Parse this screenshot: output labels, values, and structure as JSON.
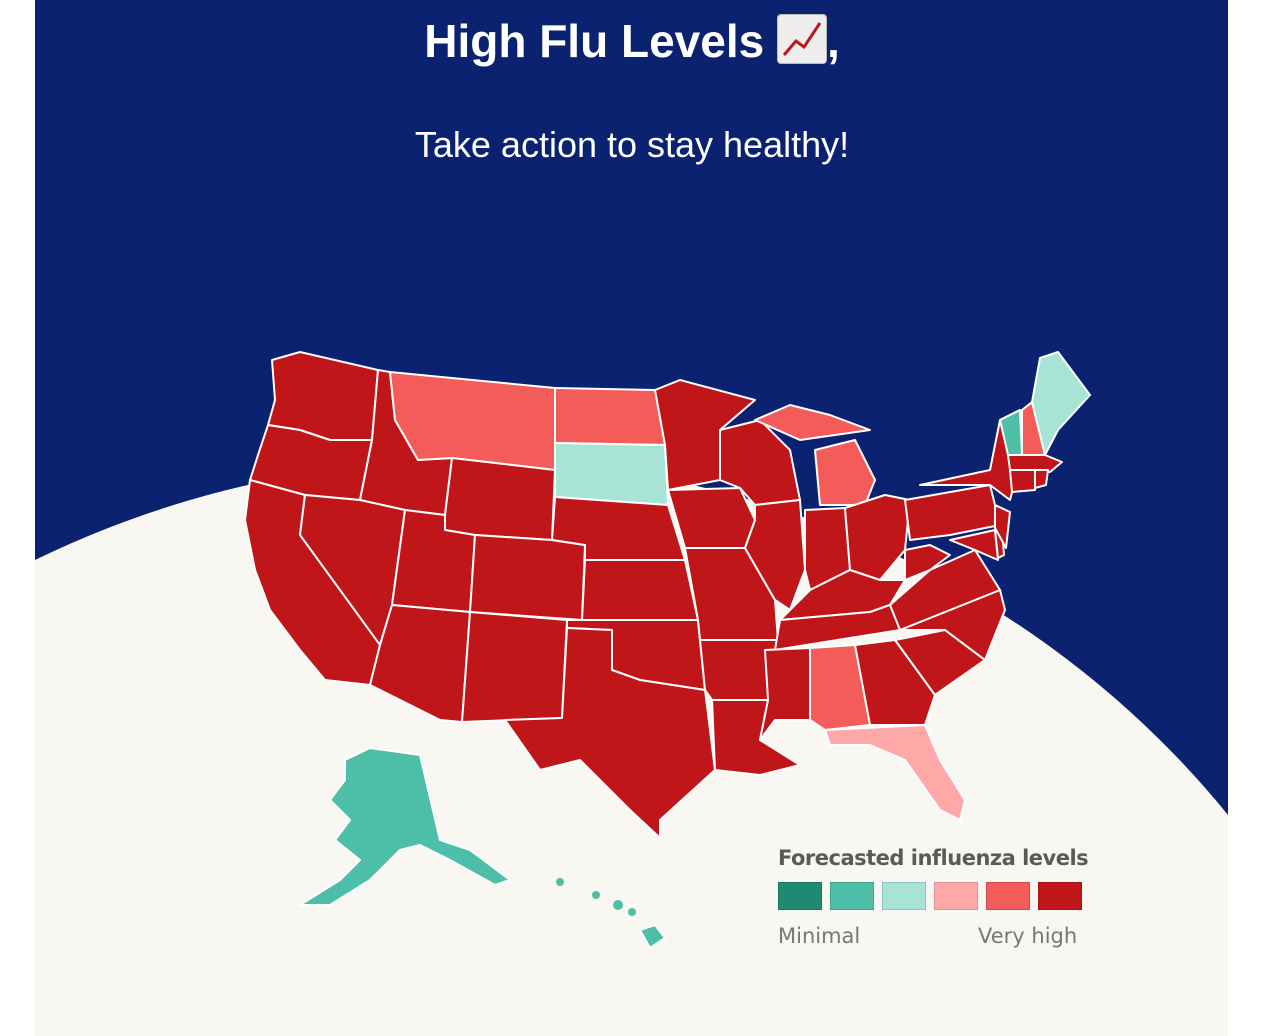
{
  "header": {
    "title": "High Flu Levels",
    "title_suffix": ",",
    "title_emoji": "chart-increasing-icon",
    "subtitle": "Take action to stay healthy!"
  },
  "colors": {
    "background": "#0b2270",
    "map_backdrop": "#f9f7f2",
    "levels": [
      "#1e8a72",
      "#4dbfa8",
      "#a8e4d6",
      "#ffa8a8",
      "#f45c5a",
      "#c0161a"
    ]
  },
  "legend": {
    "title": "Forecasted influenza levels",
    "min_label": "Minimal",
    "max_label": "Very high"
  },
  "state_levels": {
    "WA": 6,
    "OR": 6,
    "CA": 6,
    "ID": 6,
    "NV": 6,
    "MT": 5,
    "WY": 6,
    "UT": 6,
    "AZ": 6,
    "CO": 6,
    "NM": 6,
    "ND": 5,
    "SD": 3,
    "NE": 6,
    "KS": 6,
    "OK": 6,
    "TX": 6,
    "MN": 6,
    "IA": 6,
    "MO": 6,
    "AR": 6,
    "LA": 6,
    "WI": 6,
    "IL": 6,
    "MI": 5,
    "IN": 6,
    "OH": 6,
    "KY": 6,
    "TN": 6,
    "MS": 6,
    "AL": 5,
    "GA": 6,
    "FL": 4,
    "SC": 6,
    "NC": 6,
    "VA": 6,
    "WV": 6,
    "PA": 6,
    "NY": 6,
    "MD": 6,
    "DE": 6,
    "NJ": 6,
    "VT": 2,
    "NH": 5,
    "ME": 3,
    "MA": 6,
    "CT": 6,
    "RI": 6,
    "AK": 2,
    "HI": 2
  }
}
